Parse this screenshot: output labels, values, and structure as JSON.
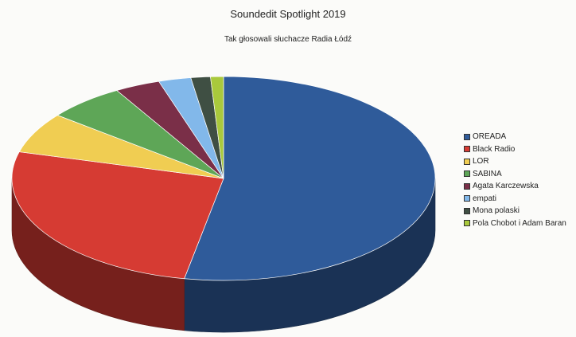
{
  "chart_data": {
    "type": "pie",
    "title": "Soundedit Spotlight 2019",
    "subtitle": "Tak głosowali słuchacze Radia Łódź",
    "three_d": true,
    "legend_position": "right",
    "slices": [
      {
        "name": "OREADA",
        "value": 53.5,
        "color": "#2f5b9a"
      },
      {
        "name": "Black Radio",
        "value": 26.5,
        "color": "#d63b33"
      },
      {
        "name": "LOR",
        "value": 6.5,
        "color": "#f0cd52"
      },
      {
        "name": "SABINA",
        "value": 6.0,
        "color": "#5ea657"
      },
      {
        "name": "Agata Karczewska",
        "value": 3.5,
        "color": "#7a2f48"
      },
      {
        "name": "empati",
        "value": 2.5,
        "color": "#82b8ea"
      },
      {
        "name": "Mona polaski",
        "value": 1.5,
        "color": "#3f4f43"
      },
      {
        "name": "Pola Chobot i Adam Baran",
        "value": 1.0,
        "color": "#a9c93c"
      }
    ]
  }
}
